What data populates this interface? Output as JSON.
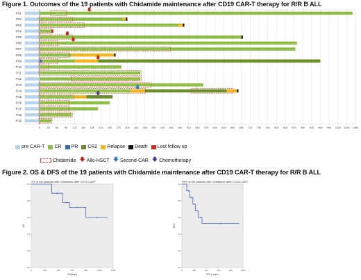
{
  "figure1": {
    "title": "Figure 1. Outcomes of the 19 patients with Chidamide maintenance  after CD19 CAR-T therapy for R/R B ALL"
  },
  "figure2": {
    "title": "Figure 2. OS & DFS of the 19 patients with Chidamide maintenance  after CD19 CAR-T therapy for R/R B ALL"
  },
  "legend1": {
    "pre_cart": "pre CAR-T",
    "cr": "CR",
    "pr": "PR",
    "cr2": "CR2",
    "relapse": "Relapse",
    "death": "Death",
    "lost": "Lost follow up"
  },
  "legend2": {
    "chidamide": "Chidamide",
    "allo": "Allo-HSCT",
    "second_car": "Second-CAR",
    "chemo": "Chemotherapy"
  },
  "colors": {
    "pre": "#b8d4ec",
    "cr": "#8fbf48",
    "pr": "#3a6bb5",
    "cr2": "#6a8e2a",
    "relapse": "#f2b522",
    "death": "#111111",
    "lost": "#d62a1a",
    "chidamide": "#d93c35",
    "allo": "#c0231b",
    "second_car": "#2d7dc3",
    "chemo": "#4b3b8f"
  },
  "chart_data": [
    {
      "type": "bar",
      "subtype": "swimmer",
      "xlim": [
        0,
        1080
      ],
      "x_ticks": [
        0,
        30,
        60,
        90,
        120,
        150,
        180,
        210,
        240,
        270,
        300,
        330,
        360,
        390,
        420,
        450,
        480,
        510,
        540,
        570,
        600,
        630,
        660,
        690,
        720,
        750,
        780,
        810,
        840,
        870,
        900,
        930,
        960,
        990,
        1020,
        1050,
        1080
      ],
      "grid": true,
      "patients": [
        {
          "id": "P01",
          "segments": [
            [
              "pre",
              -20,
              0
            ],
            [
              "cr",
              0,
              1070
            ]
          ],
          "chidamide": [
            [
              40,
              90
            ]
          ],
          "allo": [
            170
          ]
        },
        {
          "id": "P02",
          "segments": [
            [
              "pre",
              -20,
              0
            ],
            [
              "cr",
              0,
              285
            ],
            [
              "relapse",
              285,
              295
            ],
            [
              "death",
              295,
              300
            ]
          ],
          "chidamide": [
            [
              0,
              110
            ]
          ]
        },
        {
          "id": "P03",
          "segments": [
            [
              "pre",
              -20,
              0
            ],
            [
              "cr",
              0,
              475
            ],
            [
              "relapse",
              475,
              490
            ],
            [
              "death",
              490,
              495
            ]
          ],
          "chidamide": [
            [
              0,
              150
            ]
          ]
        },
        {
          "id": "P04",
          "segments": [
            [
              "pre",
              -20,
              0
            ],
            [
              "cr",
              0,
              40
            ]
          ],
          "chidamide": [
            [
              0,
              40
            ]
          ],
          "lost": [
            40
          ]
        },
        {
          "id": "P05",
          "segments": [
            [
              "pre",
              -20,
              0
            ],
            [
              "cr",
              0,
              690
            ],
            [
              "death",
              690,
              695
            ]
          ],
          "chidamide": [
            [
              0,
              110
            ]
          ],
          "allo": [
            95
          ]
        },
        {
          "id": "P06",
          "segments": [
            [
              "pre",
              -20,
              0
            ],
            [
              "cr",
              0,
              880
            ]
          ],
          "chidamide": [
            [
              0,
              60
            ]
          ],
          "allo": [
            115
          ]
        },
        {
          "id": "P07",
          "segments": [
            [
              "pre",
              -20,
              0
            ],
            [
              "cr",
              0,
              875
            ]
          ],
          "chidamide": [
            [
              0,
              445
            ]
          ]
        },
        {
          "id": "P08",
          "segments": [
            [
              "pre",
              -20,
              0
            ],
            [
              "cr",
              0,
              110
            ],
            [
              "relapse",
              110,
              175
            ],
            [
              "relapse",
              175,
              255
            ],
            [
              "death",
              255,
              260
            ]
          ],
          "chidamide": [
            [
              0,
              100
            ]
          ]
        },
        {
          "id": "P09",
          "segments": [
            [
              "pre",
              -20,
              0
            ],
            [
              "pr",
              0,
              8
            ],
            [
              "cr",
              8,
              120
            ],
            [
              "relapse",
              120,
              200
            ],
            [
              "cr2",
              200,
              960
            ]
          ],
          "chidamide": [
            [
              0,
              60
            ]
          ],
          "allo": [
            200
          ]
        },
        {
          "id": "P10",
          "segments": [
            [
              "pre",
              -20,
              0
            ],
            [
              "cr",
              0,
              280
            ]
          ],
          "chidamide": [
            [
              0,
              30
            ]
          ]
        },
        {
          "id": "P11",
          "segments": [
            [
              "pre",
              -20,
              0
            ],
            [
              "cr",
              0,
              345
            ]
          ],
          "chidamide": [
            [
              0,
              345
            ]
          ]
        },
        {
          "id": "P12",
          "segments": [
            [
              "pre",
              -20,
              0
            ],
            [
              "cr",
              0,
              345
            ]
          ],
          "chidamide": [
            [
              110,
              345
            ]
          ]
        },
        {
          "id": "P13",
          "segments": [
            [
              "pre",
              -20,
              0
            ],
            [
              "cr",
              0,
              560
            ]
          ],
          "chidamide": [
            [
              0,
              380
            ]
          ]
        },
        {
          "id": "P14",
          "segments": [
            [
              "pre",
              -20,
              0
            ],
            [
              "cr",
              0,
              310
            ],
            [
              "relapse",
              310,
              360
            ],
            [
              "cr2",
              360,
              640
            ],
            [
              "relapse",
              640,
              675
            ],
            [
              "death",
              675,
              680
            ]
          ],
          "chidamide": [
            [
              0,
              360
            ],
            [
              520,
              660
            ]
          ],
          "second_car": [
            335
          ]
        },
        {
          "id": "P15",
          "segments": [
            [
              "pre",
              -20,
              0
            ],
            [
              "cr",
              0,
              115
            ],
            [
              "relapse",
              115,
              160
            ],
            [
              "cr2",
              160,
              250
            ]
          ],
          "chidamide": [
            [
              0,
              115
            ]
          ],
          "chemo": [
            200
          ]
        },
        {
          "id": "P16",
          "segments": [
            [
              "pre",
              -20,
              0
            ],
            [
              "cr",
              0,
              240
            ]
          ],
          "chidamide": [
            [
              0,
              100
            ]
          ]
        },
        {
          "id": "P17",
          "segments": [
            [
              "pre",
              -20,
              0
            ],
            [
              "cr",
              0,
              200
            ]
          ],
          "chidamide": [
            [
              0,
              100
            ]
          ]
        },
        {
          "id": "P18",
          "segments": [
            [
              "pre",
              -20,
              0
            ],
            [
              "cr",
              0,
              110
            ]
          ],
          "chidamide": [
            [
              0,
              110
            ]
          ]
        },
        {
          "id": "P19",
          "segments": [
            [
              "pre",
              -20,
              0
            ],
            [
              "cr",
              0,
              40
            ]
          ],
          "chidamide": [
            [
              0,
              40
            ]
          ]
        }
      ]
    },
    {
      "type": "line",
      "subtype": "kaplan-meier",
      "title": "OS of the patients with Chidamide after CD19-CART",
      "xlabel": "OS(days)",
      "ylabel": "OS",
      "xlim": [
        0,
        1200
      ],
      "ylim": [
        0,
        1.0
      ],
      "x_ticks": [
        0,
        200,
        400,
        600,
        800,
        1000,
        1200
      ],
      "y_ticks": [
        0.0,
        0.2,
        0.4,
        0.6,
        0.8,
        1.0
      ],
      "x": [
        0,
        300,
        300,
        460,
        460,
        560,
        560,
        800,
        800,
        1120
      ],
      "y": [
        1.0,
        1.0,
        0.89,
        0.89,
        0.78,
        0.78,
        0.72,
        0.72,
        0.6,
        0.6
      ]
    },
    {
      "type": "line",
      "subtype": "kaplan-meier",
      "title": "DFS of the patients with Chidamide after CD19-CART",
      "xlabel": "DFS ( days )",
      "ylabel": "DFS",
      "xlim": [
        0,
        1000
      ],
      "ylim": [
        0,
        1.0
      ],
      "x_ticks": [
        0,
        200,
        400,
        600,
        800,
        1000
      ],
      "y_ticks": [
        0.0,
        0.2,
        0.4,
        0.6,
        0.8,
        1.0
      ],
      "x": [
        0,
        80,
        80,
        130,
        130,
        180,
        180,
        220,
        220,
        270,
        270,
        330,
        330,
        940
      ],
      "y": [
        1.0,
        1.0,
        0.92,
        0.92,
        0.84,
        0.84,
        0.76,
        0.76,
        0.68,
        0.68,
        0.6,
        0.6,
        0.53,
        0.53
      ]
    }
  ]
}
